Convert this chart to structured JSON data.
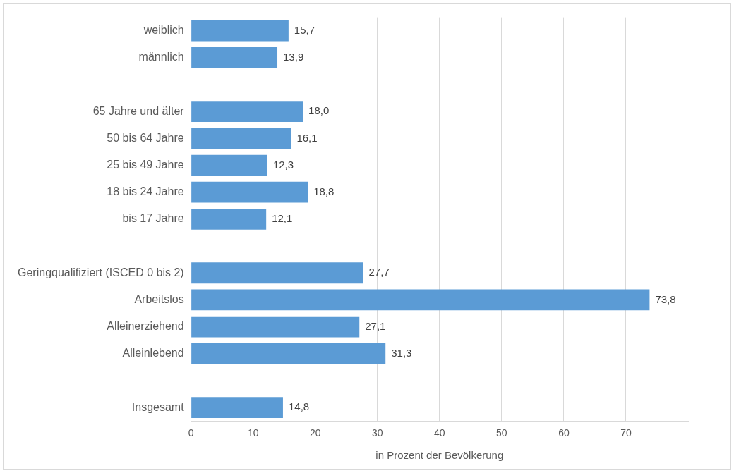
{
  "chart_data": {
    "type": "bar",
    "orientation": "horizontal",
    "xlabel": "in Prozent der Bevölkerung",
    "categories": [
      "weiblich",
      "männlich",
      null,
      "65 Jahre und älter",
      "50 bis 64 Jahre",
      "25 bis 49 Jahre",
      "18 bis 24 Jahre",
      "bis 17 Jahre",
      null,
      "Geringqualifiziert (ISCED 0 bis 2)",
      "Arbeitslos",
      "Alleinerziehend",
      "Alleinlebend",
      null,
      "Insgesamt"
    ],
    "values": [
      15.7,
      13.9,
      null,
      18.0,
      16.1,
      12.3,
      18.8,
      12.1,
      null,
      27.7,
      73.8,
      27.1,
      31.3,
      null,
      14.8
    ],
    "value_labels": [
      "15,7",
      "13,9",
      null,
      "18,0",
      "16,1",
      "12,3",
      "18,8",
      "12,1",
      null,
      "27,7",
      "73,8",
      "27,1",
      "31,3",
      null,
      "14,8"
    ],
    "color": "#5b9bd5",
    "xlim": [
      0,
      80
    ],
    "xticks": [
      0,
      10,
      20,
      30,
      40,
      50,
      60,
      70
    ],
    "grid": "x",
    "legend": false
  }
}
